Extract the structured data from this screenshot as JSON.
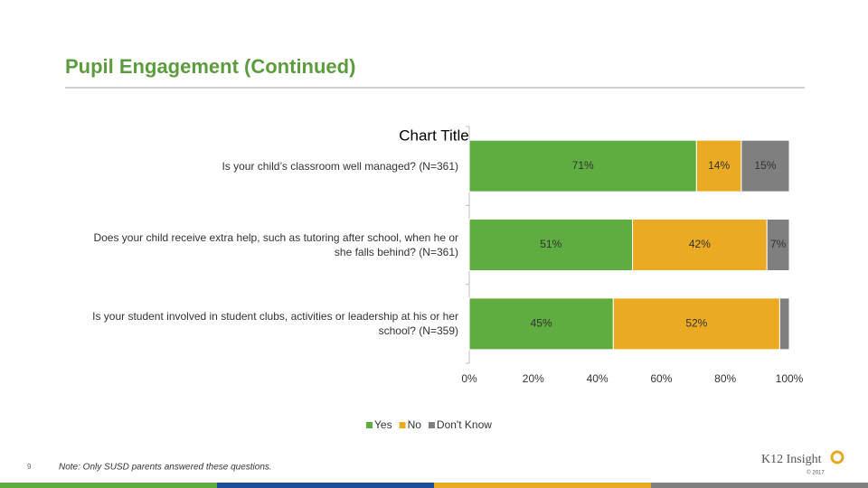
{
  "header": {
    "title": "Pupil Engagement (Continued)"
  },
  "footnote": "Note: Only SUSD parents answered these questions.",
  "page_number": "9",
  "logo": "K12 Insight",
  "copyright": "© 2017",
  "chart_data": {
    "type": "stacked-barh",
    "title": "Chart Title",
    "categories": [
      "Is your child’s classroom well managed? (N=361)",
      "Does your child receive extra help, such as tutoring after school, when he or she falls behind? (N=361)",
      "Is your student involved in student clubs, activities or leadership at his or her school? (N=359)"
    ],
    "series": [
      {
        "name": "Yes",
        "color": "#5fad41",
        "values": [
          71,
          51,
          45
        ],
        "value_labels": [
          "71%",
          "51%",
          "45%"
        ]
      },
      {
        "name": "No",
        "color": "#eaaa22",
        "values": [
          14,
          42,
          52
        ],
        "value_labels": [
          "14%",
          "42%",
          "52%"
        ]
      },
      {
        "name": "Don't Know",
        "color": "#7f7f7f",
        "values": [
          15,
          7,
          3
        ],
        "value_labels": [
          "15%",
          "7%",
          null
        ]
      }
    ],
    "xlim": [
      0,
      100
    ],
    "xticks": [
      {
        "value": 0,
        "label": "0%"
      },
      {
        "value": 20,
        "label": "20%"
      },
      {
        "value": 40,
        "label": "40%"
      },
      {
        "value": 60,
        "label": "60%"
      },
      {
        "value": 80,
        "label": "80%"
      },
      {
        "value": 100,
        "label": "100%"
      }
    ],
    "legend": "bottom"
  }
}
